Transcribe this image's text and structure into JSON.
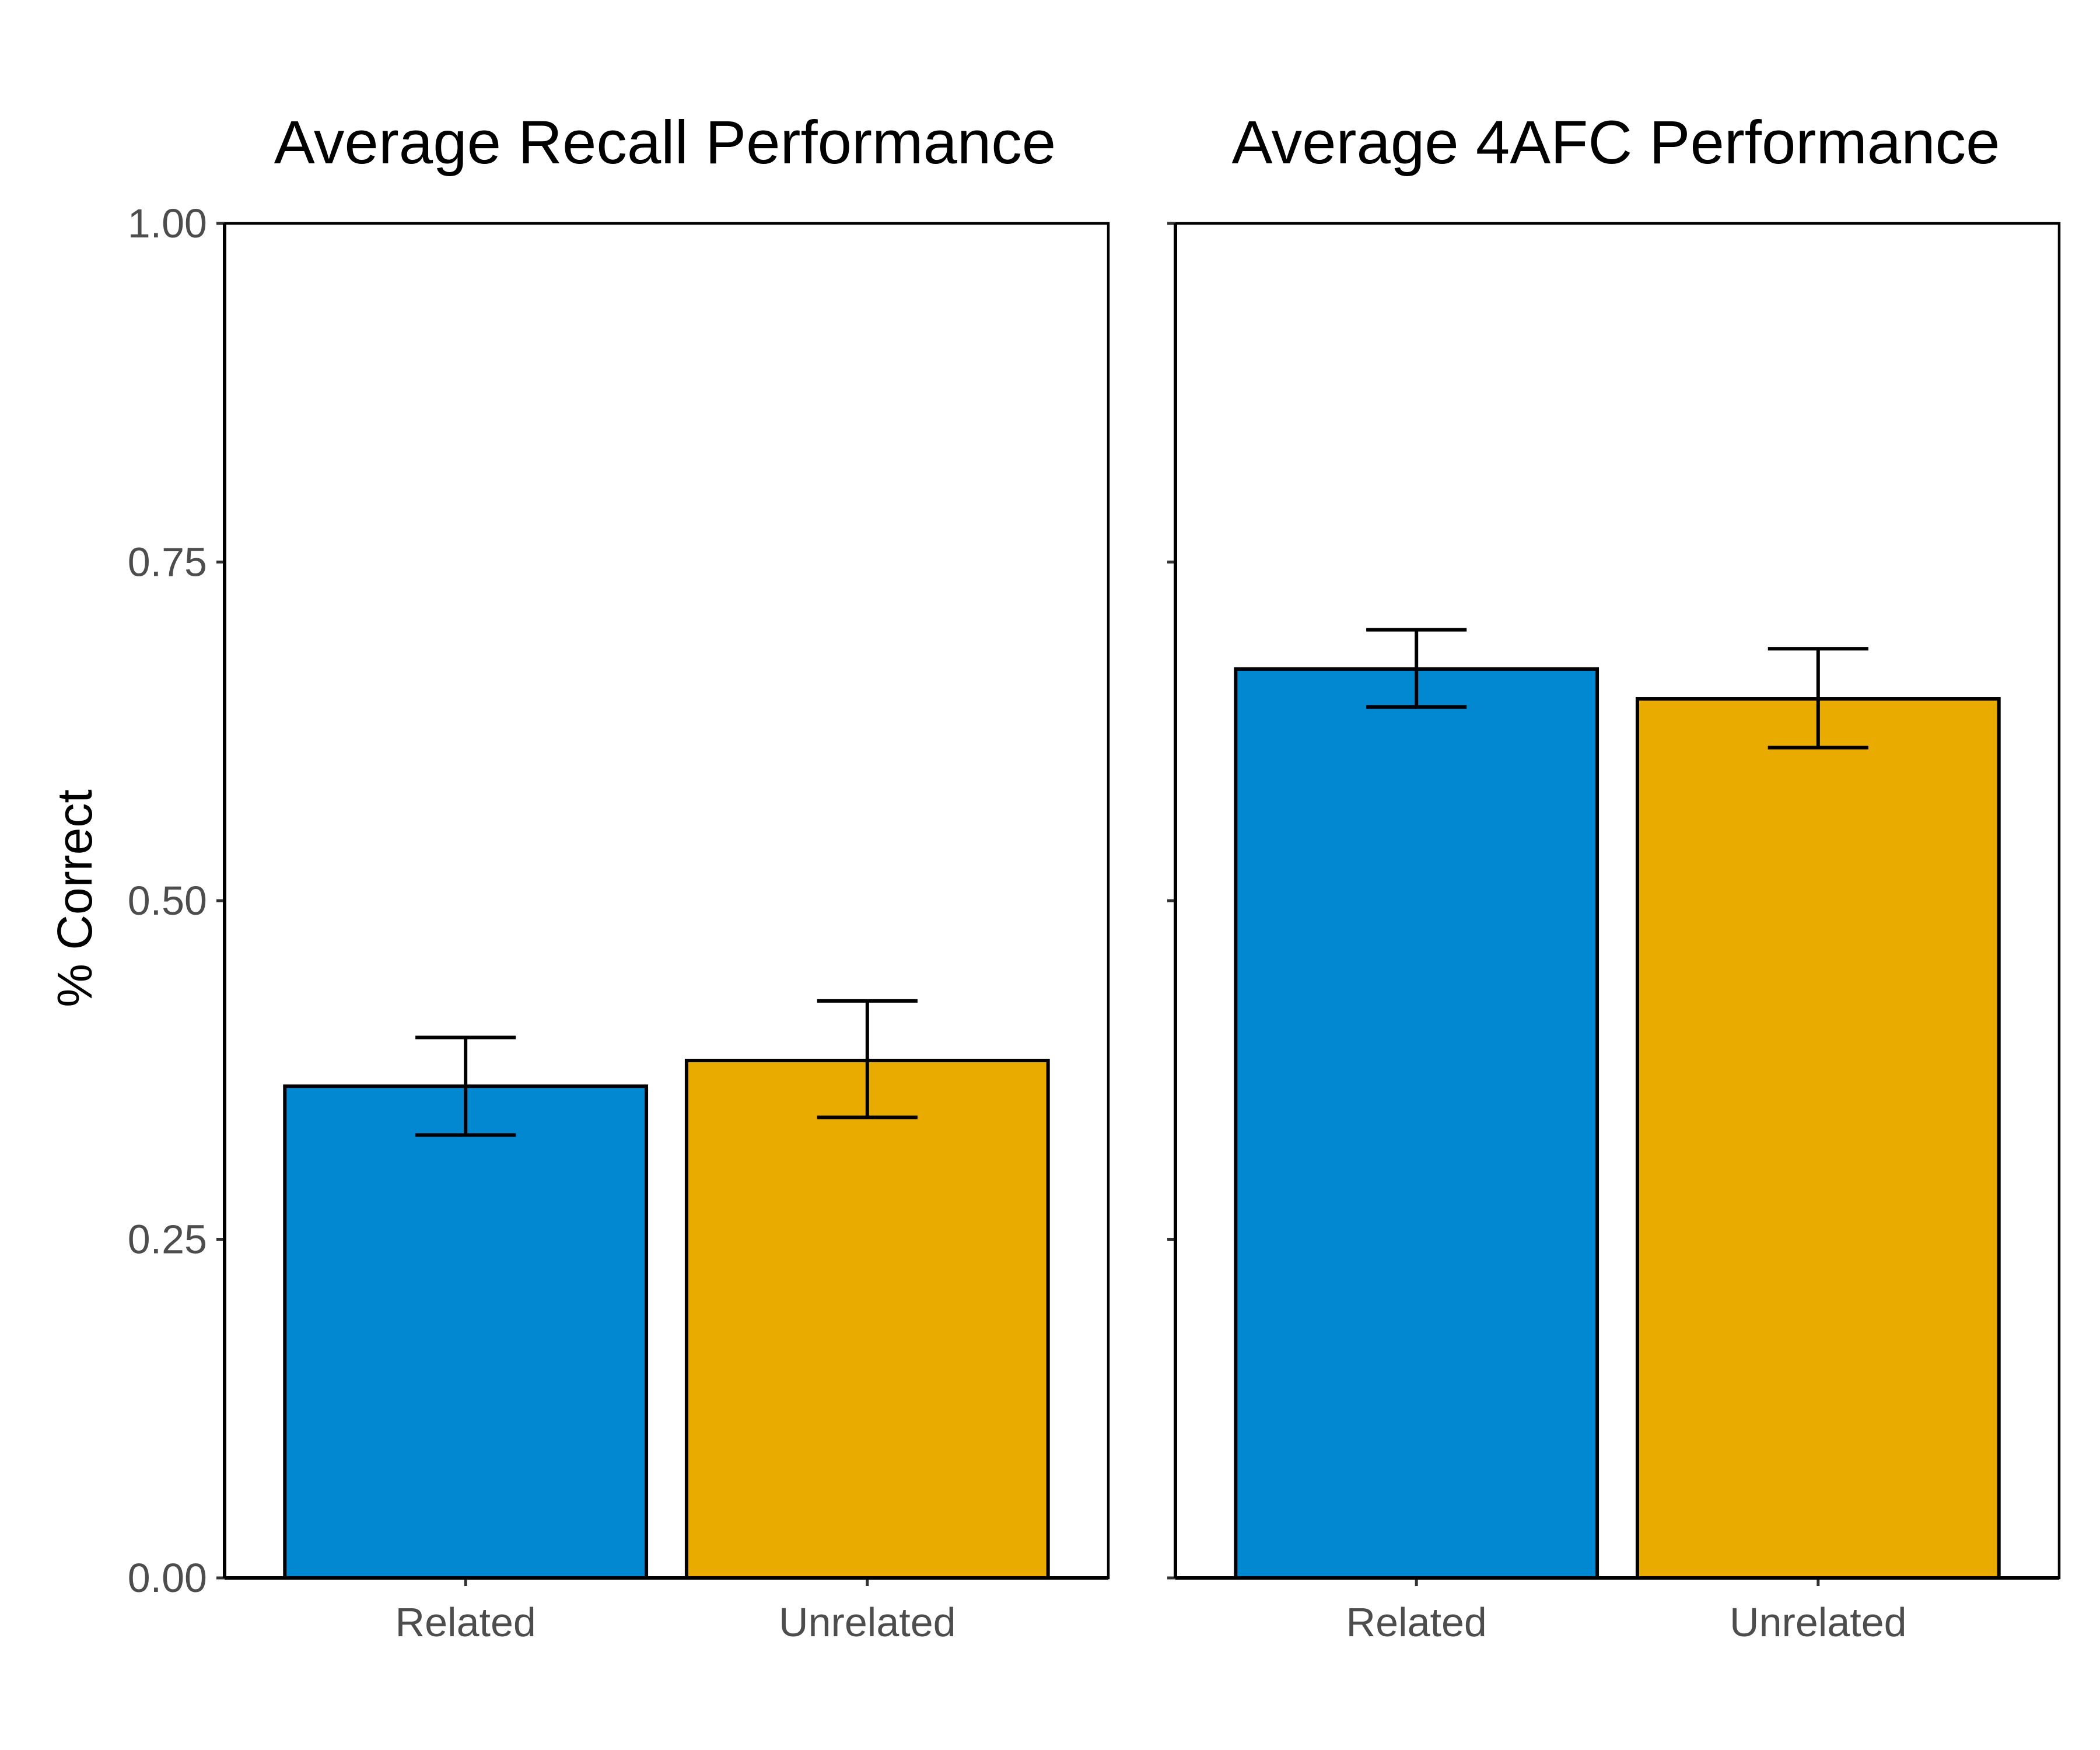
{
  "chart_data": [
    {
      "type": "bar",
      "title": "Average Recall Performance",
      "ylabel": "% Correct",
      "xlabel": "",
      "categories": [
        "Related",
        "Unrelated"
      ],
      "values": [
        0.363,
        0.382
      ],
      "error_low": [
        0.327,
        0.34
      ],
      "error_high": [
        0.399,
        0.426
      ],
      "colors": [
        "#0288d1",
        "#e9ab00"
      ],
      "ylim": [
        0,
        1
      ],
      "yticks": [
        0,
        0.25,
        0.5,
        0.75,
        1
      ],
      "ytick_labels": [
        "0.00",
        "0.25",
        "0.50",
        "0.75",
        "1.00"
      ],
      "grid": false
    },
    {
      "type": "bar",
      "title": "Average 4AFC Performance",
      "ylabel": "",
      "xlabel": "",
      "categories": [
        "Related",
        "Unrelated"
      ],
      "values": [
        0.671,
        0.649
      ],
      "error_low": [
        0.643,
        0.613
      ],
      "error_high": [
        0.7,
        0.686
      ],
      "colors": [
        "#0288d1",
        "#e9ab00"
      ],
      "ylim": [
        0,
        1
      ],
      "yticks": [
        0,
        0.25,
        0.5,
        0.75,
        1
      ],
      "ytick_labels": [],
      "grid": false
    }
  ]
}
